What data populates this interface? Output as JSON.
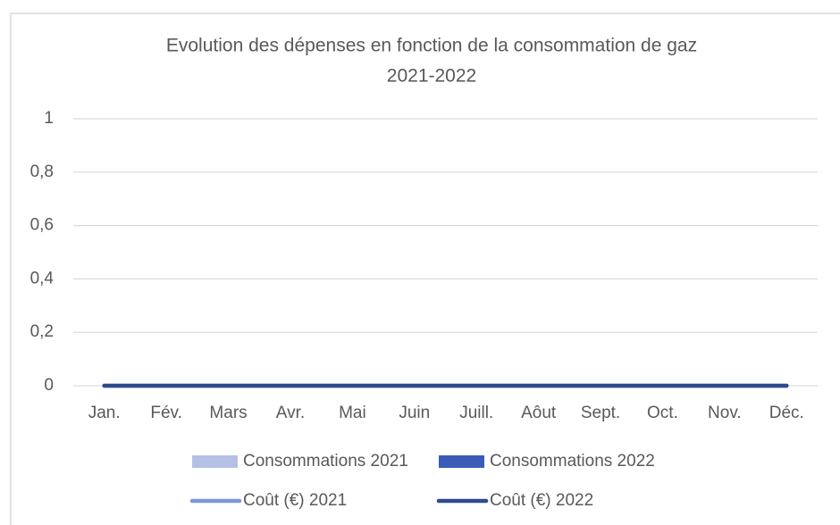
{
  "chart_data": {
    "type": "combo",
    "title": [
      "Evolution des dépenses en fonction de la consommation de gaz",
      "2021-2022"
    ],
    "categories": [
      "Jan.",
      "Fév.",
      "Mars",
      "Avr.",
      "Mai",
      "Juin",
      "Juill.",
      "Aôut",
      "Sept.",
      "Oct.",
      "Nov.",
      "Déc."
    ],
    "series": [
      {
        "name": "Consommations 2021",
        "type": "bar",
        "color": "#b4c1e4",
        "values": [
          0,
          0,
          0,
          0,
          0,
          0,
          0,
          0,
          0,
          0,
          0,
          0
        ]
      },
      {
        "name": "Consommations 2022",
        "type": "bar",
        "color": "#3a5cb8",
        "values": [
          0,
          0,
          0,
          0,
          0,
          0,
          0,
          0,
          0,
          0,
          0,
          0
        ]
      },
      {
        "name": "Coût (€) 2021",
        "type": "line",
        "color": "#7b97d4",
        "values": [
          0,
          0,
          0,
          0,
          0,
          0,
          0,
          0,
          0,
          0,
          0,
          0
        ]
      },
      {
        "name": "Coût (€) 2022",
        "type": "line",
        "color": "#2e4a8c",
        "values": [
          0,
          0,
          0,
          0,
          0,
          0,
          0,
          0,
          0,
          0,
          0,
          0
        ]
      }
    ],
    "ylim": [
      0,
      1
    ],
    "yticks": [
      0,
      {
        "value": 0.2,
        "label": "0,2"
      },
      {
        "value": 0.4,
        "label": "0,4"
      },
      {
        "value": 0.6,
        "label": "0,6"
      },
      {
        "value": 0.8,
        "label": "0,8"
      },
      1
    ],
    "grid": true,
    "legend": "bottom"
  }
}
